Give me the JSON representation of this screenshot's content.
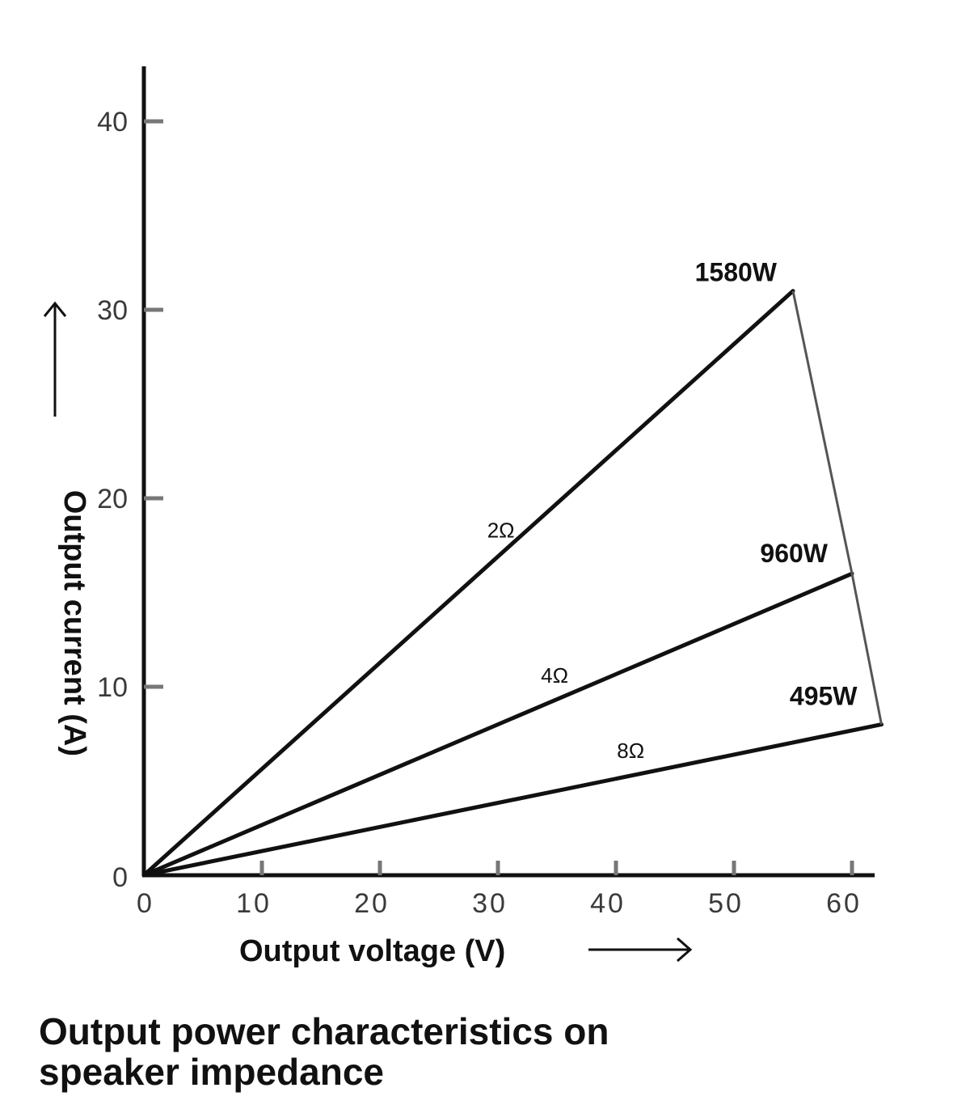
{
  "chart_data": {
    "type": "line",
    "title_lines": [
      "Output power characteristics on",
      "speaker impedance"
    ],
    "xlabel": "Output voltage (V)",
    "ylabel": "Output current (A)",
    "xlim": [
      0,
      62
    ],
    "ylim": [
      0,
      43
    ],
    "xticks": [
      0,
      10,
      20,
      30,
      40,
      50,
      60
    ],
    "yticks": [
      0,
      10,
      20,
      30,
      40
    ],
    "xtick_labels": [
      "0",
      "10",
      "20",
      "30",
      "40",
      "50",
      "60"
    ],
    "ytick_labels": [
      "0",
      "10",
      "20",
      "30",
      "40"
    ],
    "grid": false,
    "series": [
      {
        "name": "2Ω",
        "power_label": "1580W",
        "points": [
          [
            0,
            0
          ],
          [
            55,
            31
          ]
        ]
      },
      {
        "name": "4Ω",
        "power_label": "960W",
        "points": [
          [
            0,
            0
          ],
          [
            60,
            16
          ]
        ]
      },
      {
        "name": "8Ω",
        "power_label": "495W",
        "points": [
          [
            0,
            0
          ],
          [
            62.5,
            8
          ]
        ]
      }
    ],
    "envelope": [
      [
        55,
        31
      ],
      [
        60,
        16
      ],
      [
        62.5,
        8
      ]
    ],
    "colors": {
      "lines": "#111111",
      "envelope": "#555555",
      "ticks": "#777777"
    }
  }
}
